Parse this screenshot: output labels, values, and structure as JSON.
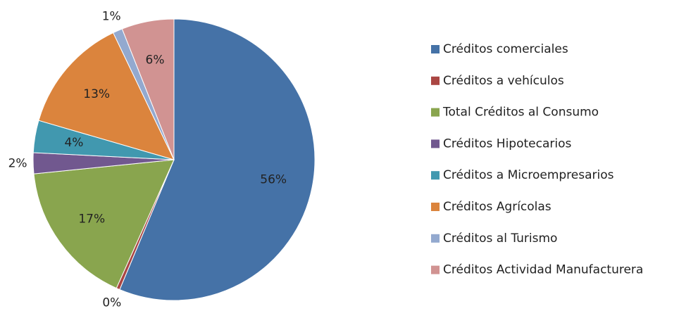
{
  "chart_data": {
    "type": "pie",
    "categories": [
      "Créditos comerciales",
      "Créditos a vehículos",
      "Total Créditos al Consumo",
      "Créditos Hipotecarios",
      "Créditos a Microempresarios",
      "Créditos Agrícolas",
      "Créditos al Turismo",
      "Créditos Actividad Manufacturera"
    ],
    "values": [
      56.3,
      0.4,
      16.7,
      2.4,
      3.7,
      13.4,
      1.1,
      6.0
    ],
    "value_labels": [
      "56%",
      "0%",
      "17%",
      "2%",
      "4%",
      "13%",
      "1%",
      "6%"
    ],
    "colors": [
      "#4572a7",
      "#aa4643",
      "#89a54e",
      "#71588f",
      "#4198af",
      "#db843d",
      "#93a9cf",
      "#d19392"
    ],
    "legend": "right"
  }
}
